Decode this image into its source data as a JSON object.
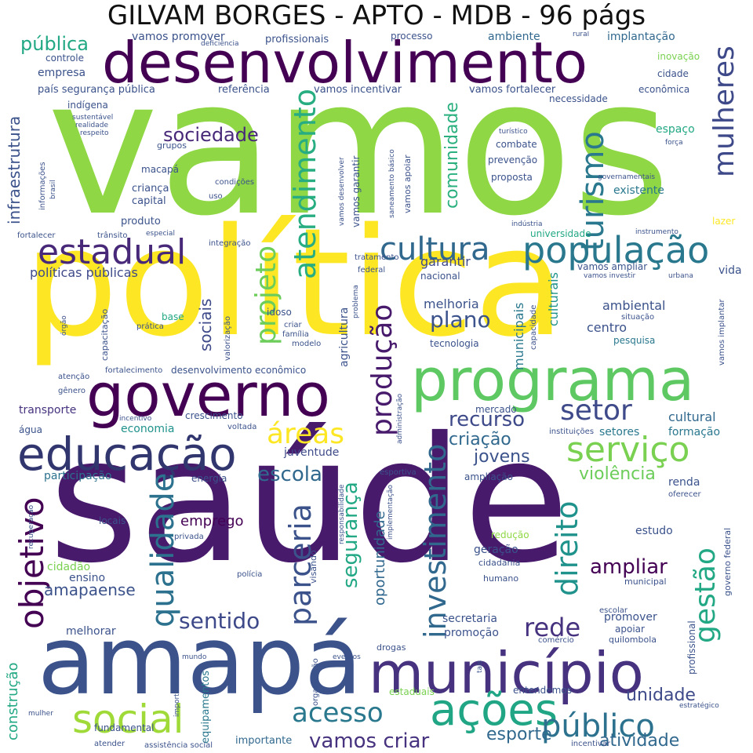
{
  "title": "GILVAM BORGES - APTO - MDB - 96 págs",
  "colors": {
    "dark_purple": "#440154",
    "indigo": "#3b528b",
    "teal": "#21918c",
    "green": "#5ec962",
    "lime": "#8fd744",
    "yellow": "#fde725"
  },
  "words": {
    "vamos": "vamos",
    "saude": "saúde",
    "politica": "política",
    "desenvolvimento": "desenvolvimento",
    "amapa": "amapá",
    "programa": "programa",
    "governo": "governo",
    "municipio": "município",
    "educacao": "educação",
    "acoes": "ações",
    "populacao": "população",
    "estadual": "estadual",
    "cultura": "cultura",
    "social": "social",
    "servico": "serviço",
    "publico": "público",
    "setor": "setor",
    "mulheres": "mulheres",
    "turismo": "turismo",
    "atendimento": "atendimento",
    "projeto": "projeto",
    "areas": "áreas",
    "producao": "produção",
    "investimento": "investimento",
    "objetivo": "objetivo",
    "qualidade": "qualidade",
    "parceria": "parceria",
    "direito": "direito",
    "gestao": "gestão",
    "acesso": "acesso",
    "rede": "rede",
    "sentido": "sentido",
    "sociedade": "sociedade",
    "plano": "plano",
    "escola": "escola",
    "recurso": "recurso",
    "ampliar": "ampliar",
    "vamos_criar": "vamos criar",
    "unidade": "unidade",
    "atividade": "atividade",
    "esporte": "esporte",
    "jovens": "jovens",
    "violencia": "violência",
    "seguranca": "segurança",
    "comunidade": "comunidade",
    "infraestrutura": "infraestrutura",
    "publica": "pública",
    "empresa": "empresa",
    "controle": "controle",
    "pais_seguranca_publica": "país segurança pública",
    "indigena": "indígena",
    "sustentavel": "sustentável",
    "realidade": "realidade",
    "respeito": "respeito",
    "vamos_promover": "vamos promover",
    "deficiencia": "deficiência",
    "profissionais": "profissionais",
    "processo": "processo",
    "ambiente": "ambiente",
    "implantacao": "implantação",
    "rural": "rural",
    "inovacao": "inovação",
    "cidade": "cidade",
    "economica": "econômica",
    "referencia": "referência",
    "vamos_incentivar": "vamos incentivar",
    "vamos_fortalecer": "vamos fortalecer",
    "necessidade": "necessidade",
    "espaco": "espaço",
    "forca": "força",
    "governamentais": "governamentais",
    "turistico": "turístico",
    "combate": "combate",
    "prevencao": "prevenção",
    "proposta": "proposta",
    "existente": "existente",
    "grupos": "grupos",
    "macapa": "macapá",
    "crianca": "criança",
    "capital": "capital",
    "condicoes": "condições",
    "uso": "uso",
    "informacoes": "informações",
    "brasil": "brasil",
    "produto": "produto",
    "fortalecer": "fortalecer",
    "transito": "trânsito",
    "especial": "especial",
    "integracao": "integração",
    "industria": "indústria",
    "universidade": "universidade",
    "instrumento": "instrumento",
    "lazer": "lazer",
    "vamos_desenvolver": "vamos desenvolver",
    "saneamento_basico": "saneamento básico",
    "vamos_garantir": "vamos garantir",
    "vamos_apoiar": "vamos apoiar",
    "politicas_publicas": "políticas públicas",
    "sociais": "sociais",
    "capacitacao": "capacitação",
    "valorizacao": "valorização",
    "base": "base",
    "pratica": "prática",
    "idoso": "idoso",
    "criar": "criar",
    "familia": "família",
    "modelo": "modelo",
    "agricultura": "agricultura",
    "problema": "problema",
    "tratamento": "tratamento",
    "federal": "federal",
    "nacional": "nacional",
    "garantir": "garantir",
    "melhoria": "melhoria",
    "tecnologia": "tecnologia",
    "municipais": "municipais",
    "capacidade": "capacidade",
    "culturais": "culturais",
    "vamos_ampliar": "vamos ampliar",
    "vamos_investir": "vamos investir",
    "urbana": "urbana",
    "vida": "vida",
    "ambiental": "ambiental",
    "centro": "centro",
    "pesquisa": "pesquisa",
    "situacao": "situação",
    "vamos_implantar": "vamos implantar",
    "orgao": "órgão",
    "atencao": "atenção",
    "genero": "gênero",
    "fortalecimento": "fortalecimento",
    "desenvolvimento_economico": "desenvolvimento econômico",
    "transporte": "transporte",
    "incentivo": "incentivo",
    "crescimento": "crescimento",
    "prioridade": "prioridade",
    "voltada": "voltada",
    "economia": "economia",
    "agua": "água",
    "administracao": "administração",
    "mercado": "mercado",
    "instituicoes": "instituições",
    "cultural": "cultural",
    "setores": "setores",
    "formacao": "formação",
    "criacao": "criação",
    "juventude": "juventude",
    "participacao": "participação",
    "energia": "energia",
    "esportiva": "esportiva",
    "ampliacao": "ampliação",
    "renda": "renda",
    "oferecer": "oferecer",
    "emprego": "emprego",
    "locais": "locais",
    "privada": "privada",
    "recuperacao": "recuperação",
    "responsabilidade": "responsabilidade",
    "oportunidade": "oportunidade",
    "implementacao": "implementação",
    "reducao": "redução",
    "estudo": "estudo",
    "geracao": "geração",
    "cidadania": "cidadania",
    "humano": "humano",
    "cidadao": "cidadão",
    "ensino": "ensino",
    "policia": "polícia",
    "visando": "visando",
    "municipal": "municipal",
    "governo_federal": "governo federal",
    "amapaense": "amapaense",
    "melhorar": "melhorar",
    "secretaria": "secretaria",
    "promocao": "promoção",
    "promover": "promover",
    "apoiar": "apoiar",
    "quilombola": "quilombola",
    "comercio": "comércio",
    "escolar": "escolar",
    "profissional": "profissional",
    "construcao": "construção",
    "mundo": "mundo",
    "organizacao": "organização",
    "eventos": "eventos",
    "drogas": "drogas",
    "tais": "tais",
    "estaduais": "estaduais",
    "entendemos": "entendemos",
    "estrategico": "estratégico",
    "incentivar": "incentivar",
    "fundamental": "fundamental",
    "importancia": "importância",
    "equipamentos": "equipamentos",
    "importante": "importante",
    "mulher": "mulher",
    "atender": "atender",
    "assistencia_social": "assistência social"
  }
}
